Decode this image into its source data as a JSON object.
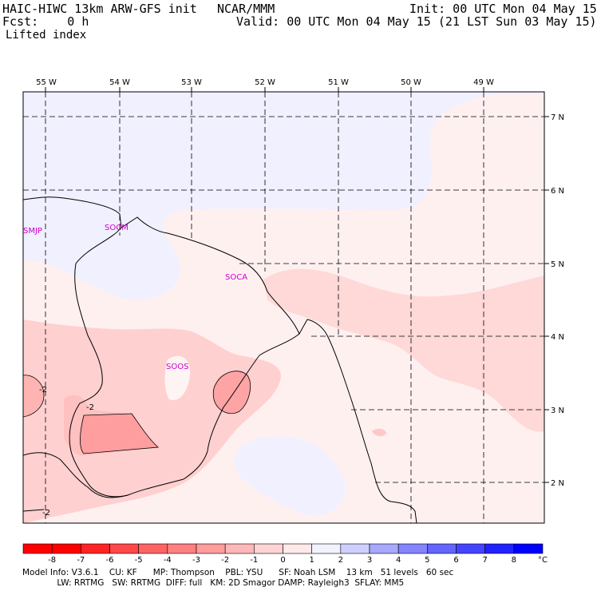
{
  "header": {
    "model_title": "HAIC-HIWC 13km ARW-GFS init",
    "org": "NCAR/MMM",
    "init": "Init: 00 UTC Mon 04 May 15",
    "fcst": "Fcst:    0 h",
    "valid": "Valid: 00 UTC Mon 04 May 15 (21 LST Sun 03 May 15)",
    "field": "Lifted index"
  },
  "map": {
    "lon_labels": [
      "55 W",
      "54 W",
      "53 W",
      "52 W",
      "51 W",
      "50 W",
      "49 W"
    ],
    "lat_labels": [
      "7 N",
      "6 N",
      "5 N",
      "4 N",
      "3 N",
      "2 N"
    ],
    "stations": [
      "SMJP",
      "SOCM",
      "SOCA",
      "SOOS"
    ],
    "contour_labels": [
      "-2",
      "-2",
      "-2"
    ]
  },
  "colorbar": {
    "colors": [
      "#ff0000",
      "#ff2424",
      "#ff4848",
      "#ff6464",
      "#ff8080",
      "#ff9c9c",
      "#ffb8b8",
      "#ffd4d4",
      "#ffeaea",
      "#f2f2ff",
      "#cfcfff",
      "#a8a8ff",
      "#8484ff",
      "#6464ff",
      "#4444ff",
      "#2222ff",
      "#0000ff"
    ],
    "labels": [
      "-8",
      "-7",
      "-6",
      "-5",
      "-4",
      "-3",
      "-2",
      "-1",
      "0",
      "1",
      "2",
      "3",
      "4",
      "5",
      "6",
      "7",
      "8"
    ],
    "unit": "°C"
  },
  "footer": {
    "line1": "Model Info: V3.6.1    CU: KF      MP: Thompson    PBL: YSU      SF: Noah LSM    13 km   51 levels   60 sec",
    "line2": "             LW: RRTMG   SW: RRTMG  DIFF: full   KM: 2D Smagor DAMP: Rayleigh3  SFLAY: MM5"
  }
}
